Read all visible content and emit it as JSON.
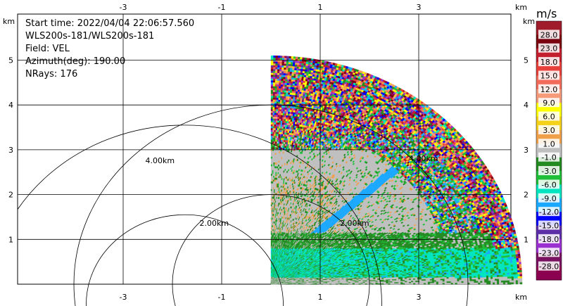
{
  "info": {
    "start_time": "Start time: 2022/04/04 22:06:57.560",
    "instrument": "WLS200s-181/WLS200s-181",
    "field": "Field: VEL",
    "azimuth": "Azimuth(deg): 190.00",
    "nrays": "NRays: 176"
  },
  "axes": {
    "x_unit": "km",
    "y_unit": "km"
  },
  "colorbar": {
    "title": "m/s",
    "labels": [
      "28.0",
      "23.0",
      "18.0",
      "15.0",
      "12.0",
      "9.0",
      "6.0",
      "3.0",
      "1.0",
      "-1.0",
      "-3.0",
      "-6.0",
      "-9.0",
      "-12.0",
      "-15.0",
      "-18.0",
      "-23.0",
      "-28.0"
    ],
    "colors": [
      "#a01c2b",
      "#7a0010",
      "#c41f2e",
      "#e8403a",
      "#f26b5b",
      "#f79a7a",
      "#ffff00",
      "#f5d11a",
      "#f0a04b",
      "#bfbfbf",
      "#238b22",
      "#1fbf3a",
      "#00e5c0",
      "#1aa8ff",
      "#0000ff",
      "#5c2fa8",
      "#9b30d0",
      "#7a1060",
      "#8c0050"
    ]
  },
  "chart_data": {
    "type": "heatmap",
    "subtype": "radar-sector-velocity",
    "field": "VEL",
    "units": "m/s",
    "xlim": [
      -5.3,
      5.3
    ],
    "ylim": [
      0,
      5.3
    ],
    "x_ticks": [
      -3,
      -1,
      1,
      3
    ],
    "y_ticks": [
      1,
      2,
      3,
      4,
      5
    ],
    "range_rings_km": [
      2.0,
      4.0
    ],
    "range_ring_labels": [
      "2.00km",
      "4.00km"
    ],
    "max_range_km": 5.1,
    "sector_deg": [
      0,
      90
    ],
    "grid": true,
    "colorbar_levels": [
      28,
      23,
      18,
      15,
      12,
      9,
      6,
      3,
      1,
      -1,
      -3,
      -6,
      -9,
      -12,
      -15,
      -18,
      -23,
      -28
    ]
  }
}
